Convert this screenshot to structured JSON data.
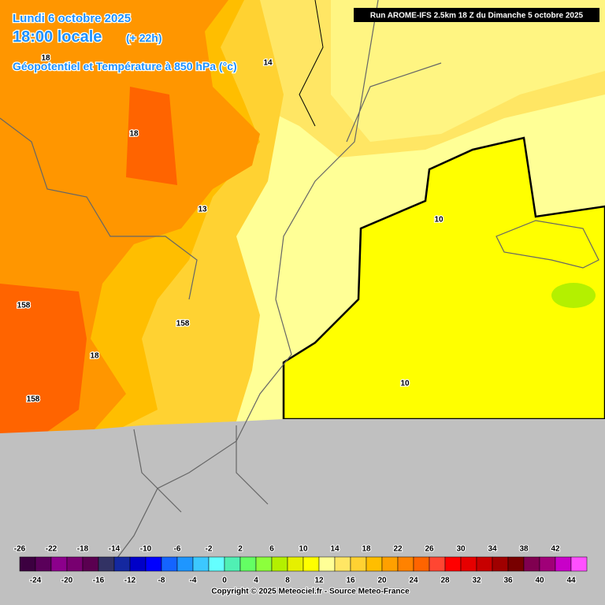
{
  "header": {
    "date": "Lundi 6 octobre 2025",
    "time": "18:00 locale",
    "lead": "(+ 22h)",
    "field": "Géopotentiel et Température à 850 hPa (°c)",
    "run": "Run AROME-IFS 2.5km 18 Z du Dimanche 5 octobre 2025"
  },
  "map": {
    "labels": [
      "18",
      "14",
      "18",
      "13",
      "158",
      "158",
      "18",
      "158",
      "10",
      "10"
    ]
  },
  "legend": {
    "colors": [
      "#3c0040",
      "#5a005a",
      "#8c008c",
      "#780070",
      "#5a0050",
      "#323264",
      "#1428a0",
      "#0000c8",
      "#0000ff",
      "#1464ff",
      "#1e96ff",
      "#3cc8ff",
      "#64ffff",
      "#50f0b4",
      "#64ff64",
      "#8cff3c",
      "#b4f000",
      "#e6f000",
      "#ffff00",
      "#ffff96",
      "#ffe664",
      "#ffd232",
      "#ffbe00",
      "#ffa000",
      "#ff8200",
      "#ff6400",
      "#ff4632",
      "#ff0000",
      "#e60000",
      "#c80000",
      "#a00000",
      "#780000",
      "#800050",
      "#a00078",
      "#c800c8",
      "#ff50ff"
    ],
    "top_labels": [
      -26,
      -22,
      -18,
      -14,
      -10,
      -6,
      -2,
      2,
      6,
      10,
      14,
      18,
      22,
      26,
      30,
      34,
      38,
      42
    ],
    "bottom_labels": [
      -24,
      -20,
      -16,
      -12,
      -8,
      -4,
      0,
      4,
      8,
      12,
      16,
      20,
      24,
      28,
      32,
      36,
      40,
      44
    ]
  },
  "footer": {
    "copyright": "Copyright © 2025 Meteociel.fr - Source Meteo-France"
  }
}
